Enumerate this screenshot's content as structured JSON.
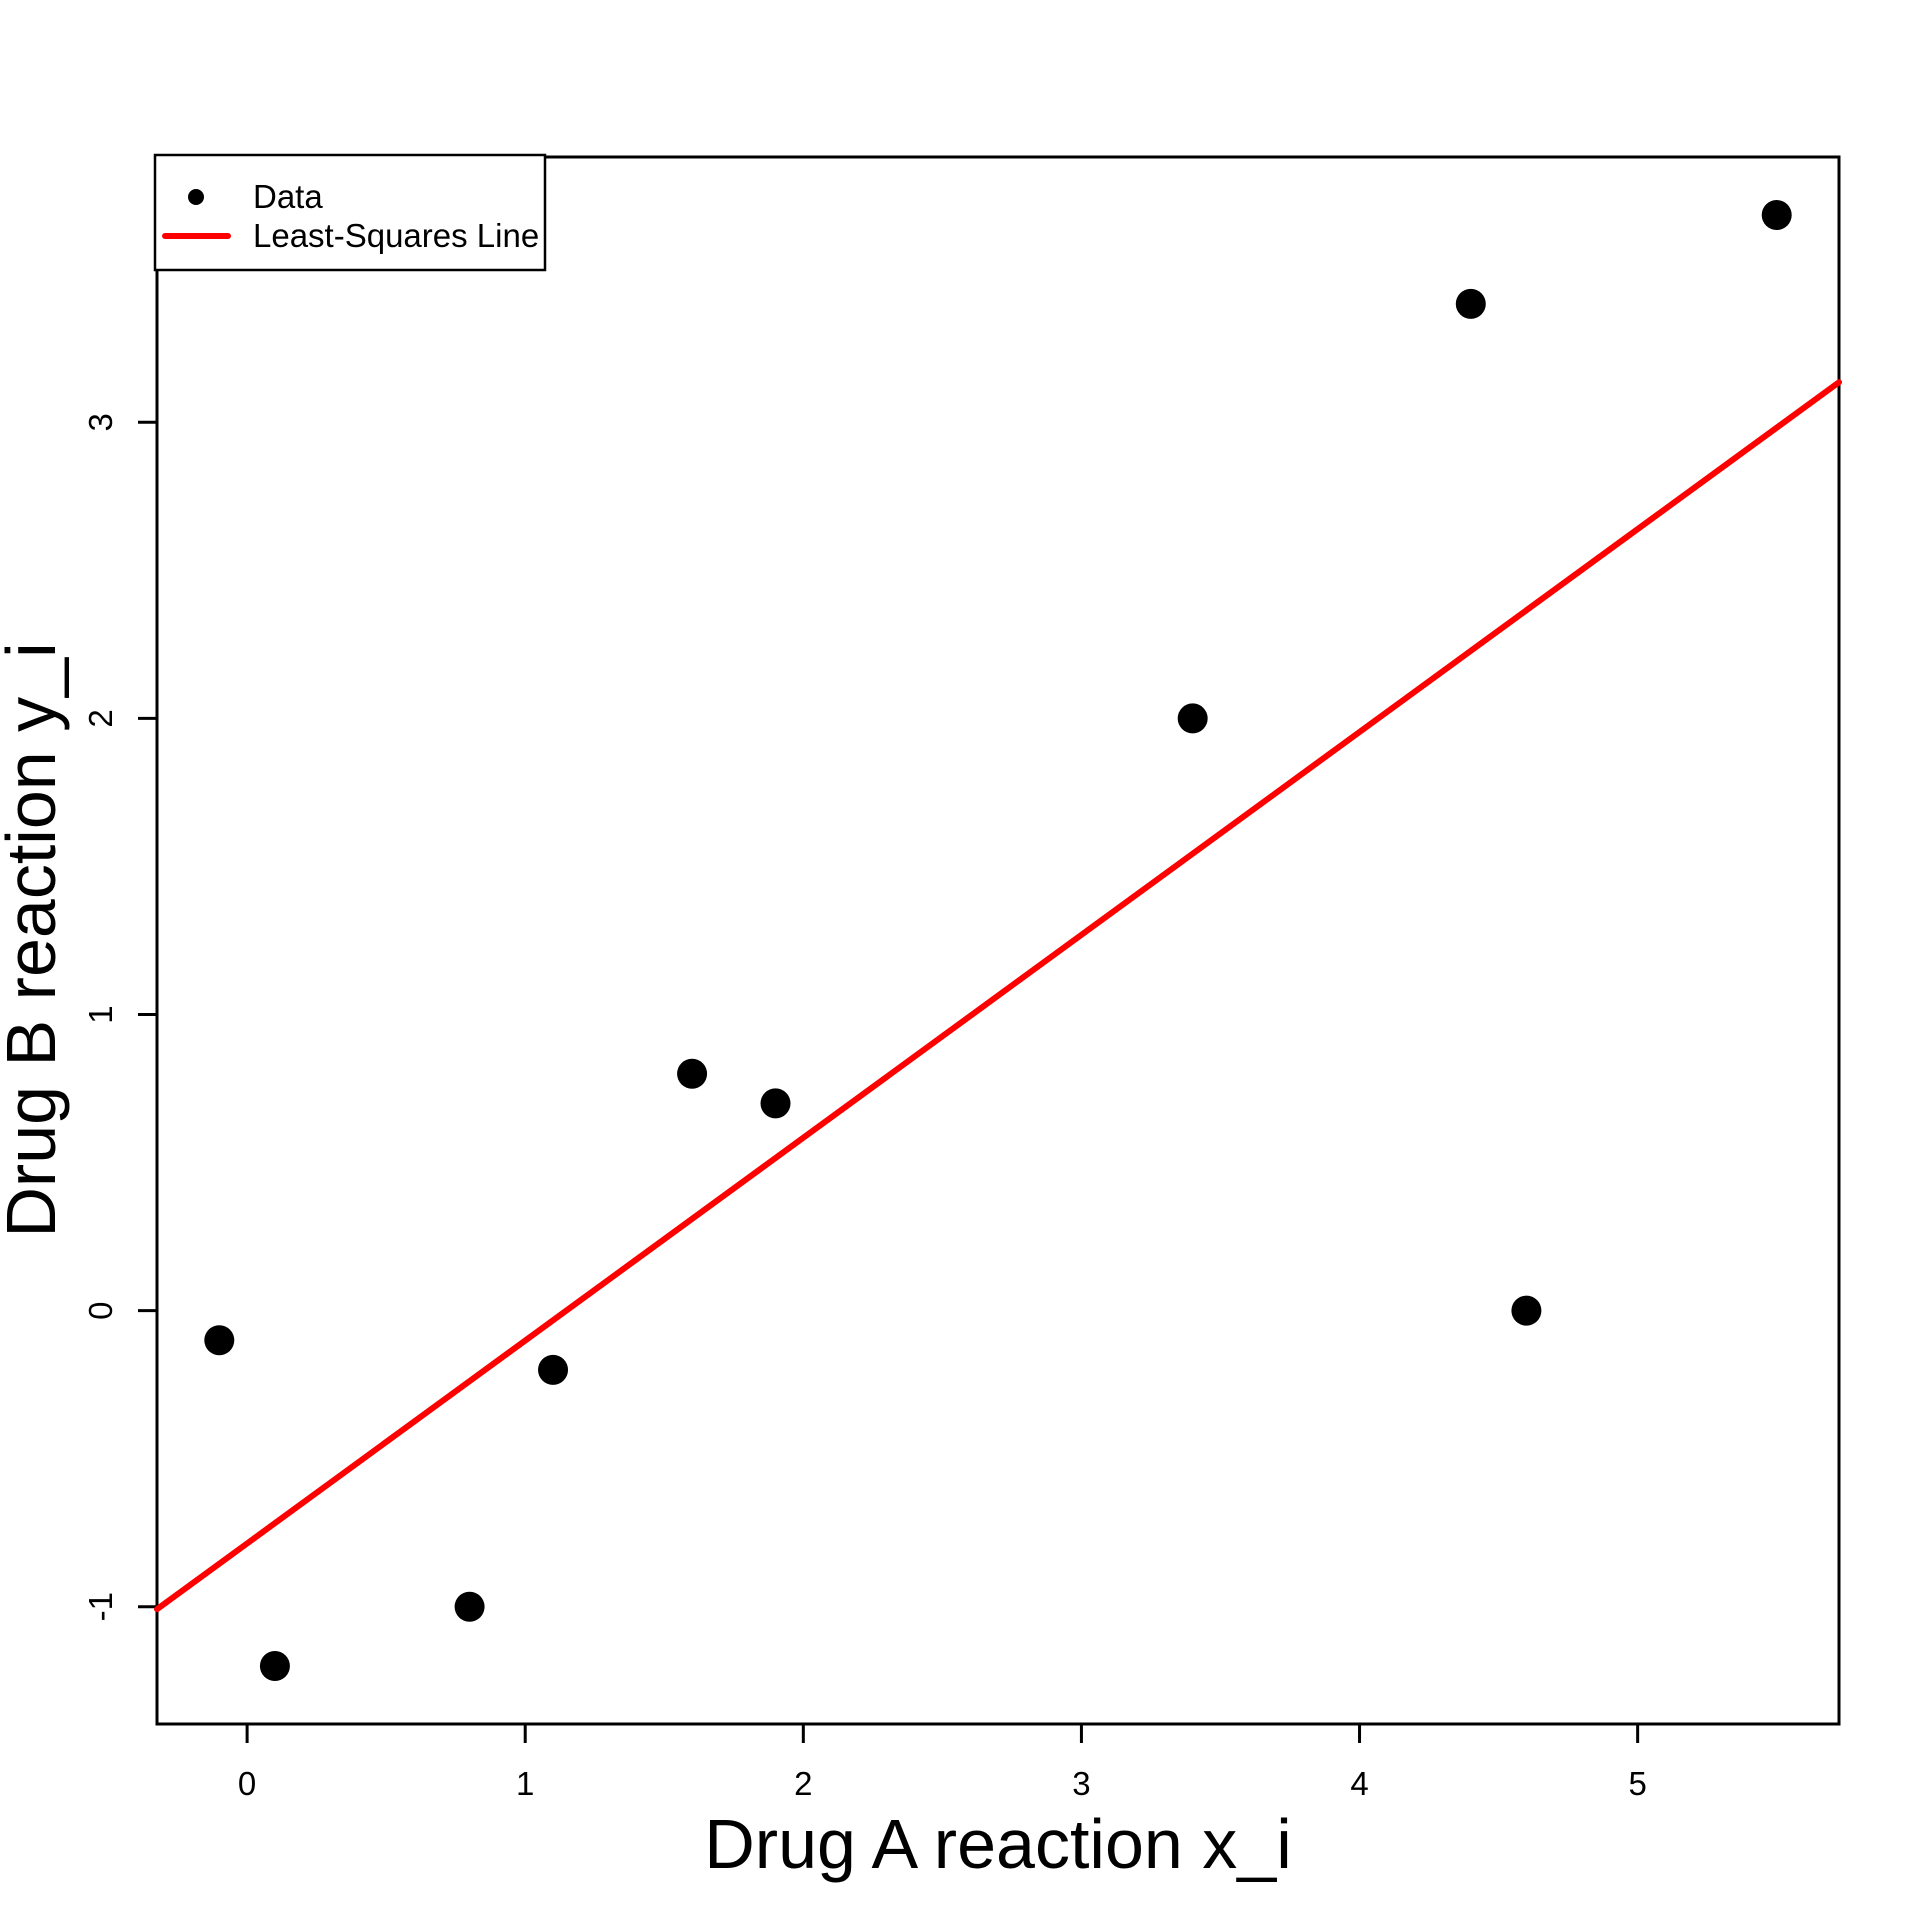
{
  "chart_data": {
    "type": "scatter",
    "title": "",
    "xlabel": "Drug A reaction x_i",
    "ylabel": "Drug B reaction y_i",
    "x_ticks": [
      0,
      1,
      2,
      3,
      4,
      5
    ],
    "y_ticks": [
      -1,
      0,
      1,
      2,
      3
    ],
    "xlim": [
      -0.324,
      5.724
    ],
    "ylim": [
      -1.396,
      3.896
    ],
    "grid": false,
    "points": [
      {
        "x": -0.1,
        "y": -0.1
      },
      {
        "x": 0.1,
        "y": -1.2
      },
      {
        "x": 0.8,
        "y": -1.0
      },
      {
        "x": 1.1,
        "y": -0.2
      },
      {
        "x": 1.6,
        "y": 0.8
      },
      {
        "x": 1.9,
        "y": 0.7
      },
      {
        "x": 3.4,
        "y": 2.0
      },
      {
        "x": 4.4,
        "y": 3.4
      },
      {
        "x": 4.6,
        "y": 0.0
      },
      {
        "x": 5.5,
        "y": 3.7
      }
    ],
    "fit_line": {
      "slope": 0.6851,
      "intercept": -0.7862
    },
    "colors": {
      "points": "#000000",
      "fit_line": "#FF0000",
      "axis": "#000000"
    },
    "legend": {
      "position": "top-left",
      "items": [
        {
          "label": "Data",
          "marker": "point",
          "color": "#000000"
        },
        {
          "label": "Least-Squares Line",
          "marker": "line",
          "color": "#FF0000"
        }
      ]
    }
  }
}
